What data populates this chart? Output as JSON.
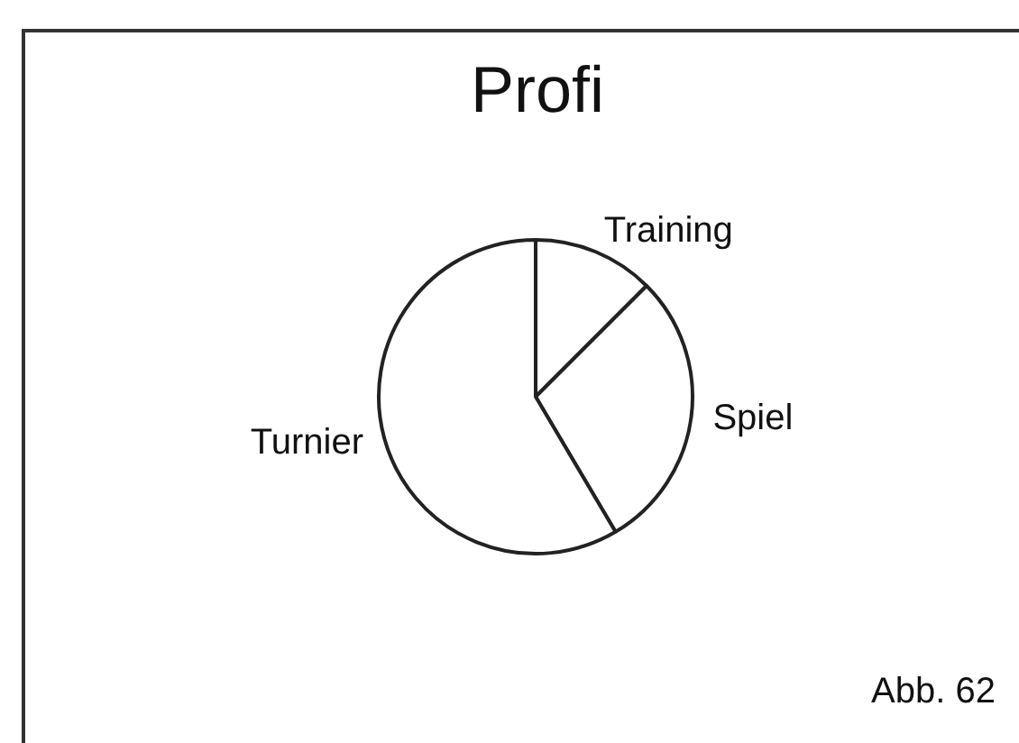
{
  "chart_data": {
    "type": "pie",
    "title": "Profi",
    "categories": [
      "Training",
      "Spiel",
      "Turnier"
    ],
    "values": [
      12.5,
      29,
      58.5
    ],
    "colors": [
      "#ffffff",
      "#ffffff",
      "#ffffff"
    ],
    "legend": false,
    "annotations": [
      "Abb. 62"
    ]
  }
}
